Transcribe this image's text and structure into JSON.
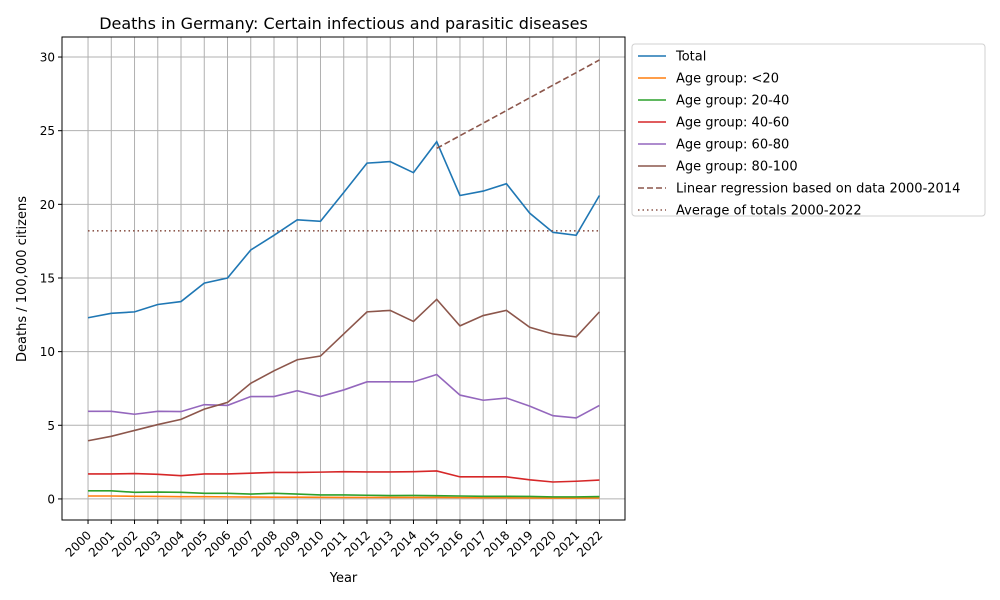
{
  "chart_data": {
    "type": "line",
    "title": "Deaths in Germany: Certain infectious and parasitic diseases",
    "xlabel": "Year",
    "ylabel": "Deaths / 100,000 citizens",
    "xlim": [
      1998.88,
      2023.1
    ],
    "ylim": [
      -1.43,
      31.36
    ],
    "grid": true,
    "legend_position": "outside-right-top",
    "x": [
      2000,
      2001,
      2002,
      2003,
      2004,
      2005,
      2006,
      2007,
      2008,
      2009,
      2010,
      2011,
      2012,
      2013,
      2014,
      2015,
      2016,
      2017,
      2018,
      2019,
      2020,
      2021,
      2022
    ],
    "yticks": [
      0,
      5,
      10,
      15,
      20,
      25,
      30
    ],
    "series": [
      {
        "name": "Total",
        "color": "#1f77b4",
        "style": "solid",
        "values": [
          12.3,
          12.6,
          12.7,
          13.2,
          13.4,
          14.65,
          15.0,
          16.9,
          17.9,
          18.95,
          18.85,
          20.8,
          22.8,
          22.9,
          22.15,
          24.25,
          20.6,
          20.9,
          21.4,
          19.4,
          18.1,
          17.9,
          20.6
        ]
      },
      {
        "name": "Age group: <20",
        "color": "#ff7f0e",
        "style": "solid",
        "values": [
          0.2,
          0.2,
          0.18,
          0.17,
          0.15,
          0.15,
          0.14,
          0.13,
          0.12,
          0.12,
          0.11,
          0.1,
          0.1,
          0.1,
          0.1,
          0.1,
          0.09,
          0.08,
          0.08,
          0.07,
          0.06,
          0.06,
          0.07
        ]
      },
      {
        "name": "Age group: 20-40",
        "color": "#2ca02c",
        "style": "solid",
        "values": [
          0.55,
          0.55,
          0.45,
          0.47,
          0.45,
          0.38,
          0.38,
          0.33,
          0.38,
          0.33,
          0.27,
          0.27,
          0.25,
          0.23,
          0.24,
          0.22,
          0.2,
          0.18,
          0.18,
          0.17,
          0.14,
          0.14,
          0.16
        ]
      },
      {
        "name": "Age group: 40-60",
        "color": "#d62728",
        "style": "solid",
        "values": [
          1.7,
          1.7,
          1.72,
          1.67,
          1.58,
          1.7,
          1.7,
          1.75,
          1.8,
          1.8,
          1.82,
          1.85,
          1.83,
          1.83,
          1.85,
          1.9,
          1.5,
          1.5,
          1.5,
          1.3,
          1.15,
          1.2,
          1.28
        ]
      },
      {
        "name": "Age group: 60-80",
        "color": "#9467bd",
        "style": "solid",
        "values": [
          5.95,
          5.95,
          5.75,
          5.95,
          5.93,
          6.4,
          6.35,
          6.95,
          6.95,
          7.35,
          6.95,
          7.4,
          7.95,
          7.95,
          7.95,
          8.45,
          7.05,
          6.7,
          6.85,
          6.3,
          5.65,
          5.5,
          6.35
        ]
      },
      {
        "name": "Age group: 80-100",
        "color": "#8c564b",
        "style": "solid",
        "values": [
          3.95,
          4.25,
          4.65,
          5.05,
          5.4,
          6.1,
          6.55,
          7.85,
          8.7,
          9.45,
          9.7,
          11.2,
          12.7,
          12.8,
          12.05,
          13.55,
          11.75,
          12.45,
          12.8,
          11.65,
          11.2,
          11.0,
          12.7
        ]
      },
      {
        "name": "Linear regression based on data 2000-2014",
        "color": "#8c564b",
        "style": "dashed",
        "x": [
          2015,
          2016,
          2017,
          2018,
          2019,
          2020,
          2021,
          2022
        ],
        "values": [
          23.8,
          24.66,
          25.51,
          26.37,
          27.23,
          28.09,
          28.94,
          29.8
        ]
      },
      {
        "name": "Average of totals 2000-2022",
        "color": "#8c564b",
        "style": "dotted",
        "x": [
          2000,
          2022
        ],
        "values": [
          18.2,
          18.2
        ]
      }
    ]
  }
}
